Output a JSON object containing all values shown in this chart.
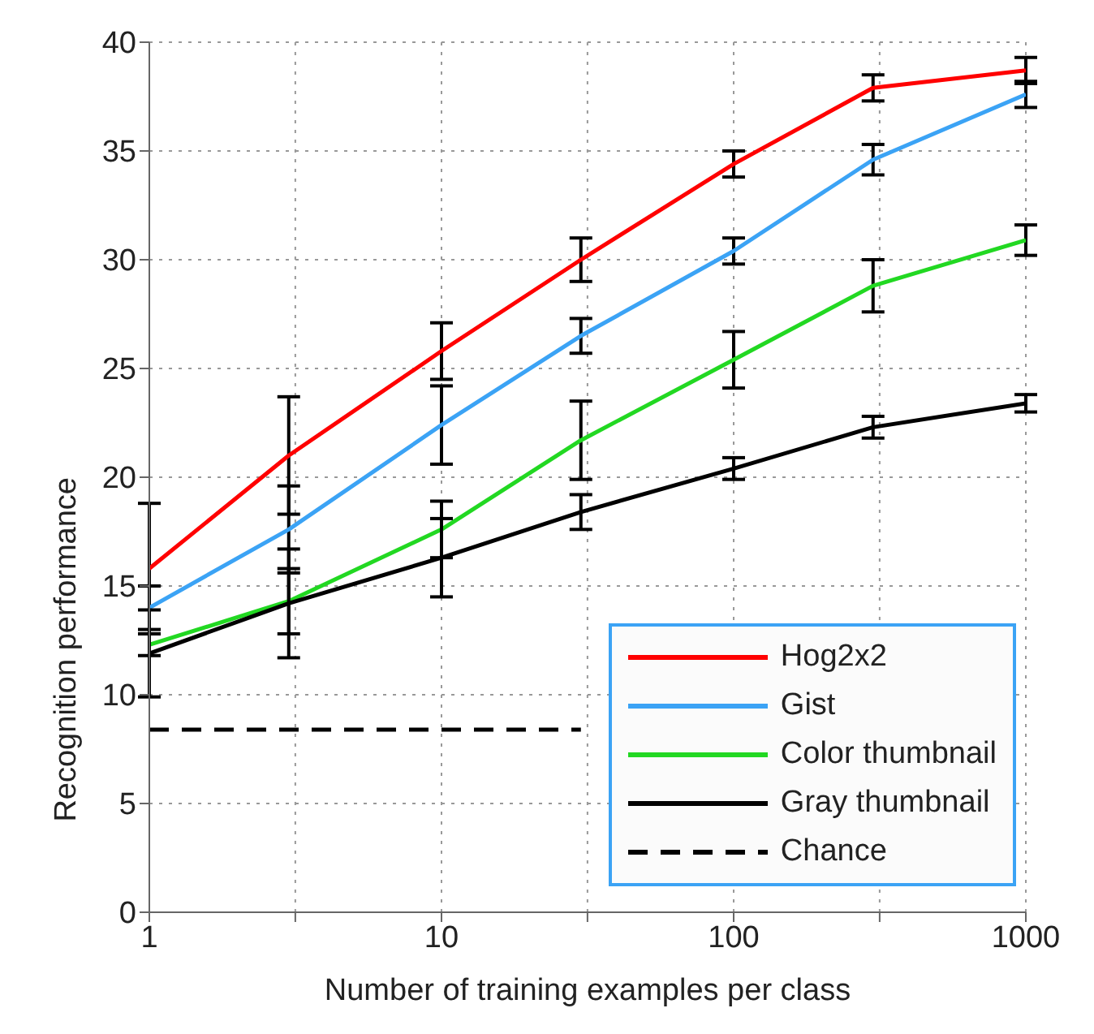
{
  "chart_data": {
    "type": "line",
    "xlabel": "Number of training examples per class",
    "ylabel": "Recognition performance",
    "x": [
      1,
      3,
      10,
      30,
      100,
      300,
      1000
    ],
    "xlim": [
      1,
      1000
    ],
    "xticks": [
      1,
      {
        "value": 3.16,
        "label": null
      },
      10,
      {
        "value": 31.6,
        "label": null
      },
      100,
      {
        "value": 316,
        "label": null
      },
      1000
    ],
    "ylim": [
      0,
      40
    ],
    "yticks": [
      0,
      5,
      10,
      15,
      20,
      25,
      30,
      35,
      40
    ],
    "log": "x",
    "grid": true,
    "legend": "bottom right",
    "marker": "none",
    "line_style": "solid",
    "series": [
      {
        "name": "Hog2x2",
        "color": "#ff0000",
        "values": [
          15.8,
          21.0,
          25.8,
          30.0,
          34.4,
          37.9,
          38.7
        ],
        "errors": [
          3,
          2.7,
          1.3,
          1,
          0.6,
          0.6,
          0.6
        ]
      },
      {
        "name": "Gist",
        "color": "#3ba3f5",
        "values": [
          14.0,
          17.6,
          22.4,
          26.5,
          30.4,
          34.6,
          37.6
        ],
        "errors": [
          1,
          2,
          1.8,
          0.8,
          0.6,
          0.7,
          0.6
        ]
      },
      {
        "name": "Color thumbnail",
        "color": "#22d822",
        "values": [
          12.3,
          14.3,
          17.6,
          21.7,
          25.4,
          28.8,
          30.9
        ],
        "errors": [
          0.5,
          1.5,
          1.3,
          1.8,
          1.3,
          1.2,
          0.7
        ]
      },
      {
        "name": "Gray thumbnail",
        "color": "#000000",
        "values": [
          11.9,
          14.2,
          16.3,
          18.4,
          20.4,
          22.3,
          23.4
        ],
        "errors": [
          2,
          2.5,
          1.8,
          0.8,
          0.5,
          0.5,
          0.4
        ]
      },
      {
        "name": "Chance",
        "color": "#000000",
        "line_style": "dashed",
        "values": [
          8.4,
          8.4,
          8.4,
          8.4,
          null,
          null,
          null
        ]
      }
    ]
  }
}
